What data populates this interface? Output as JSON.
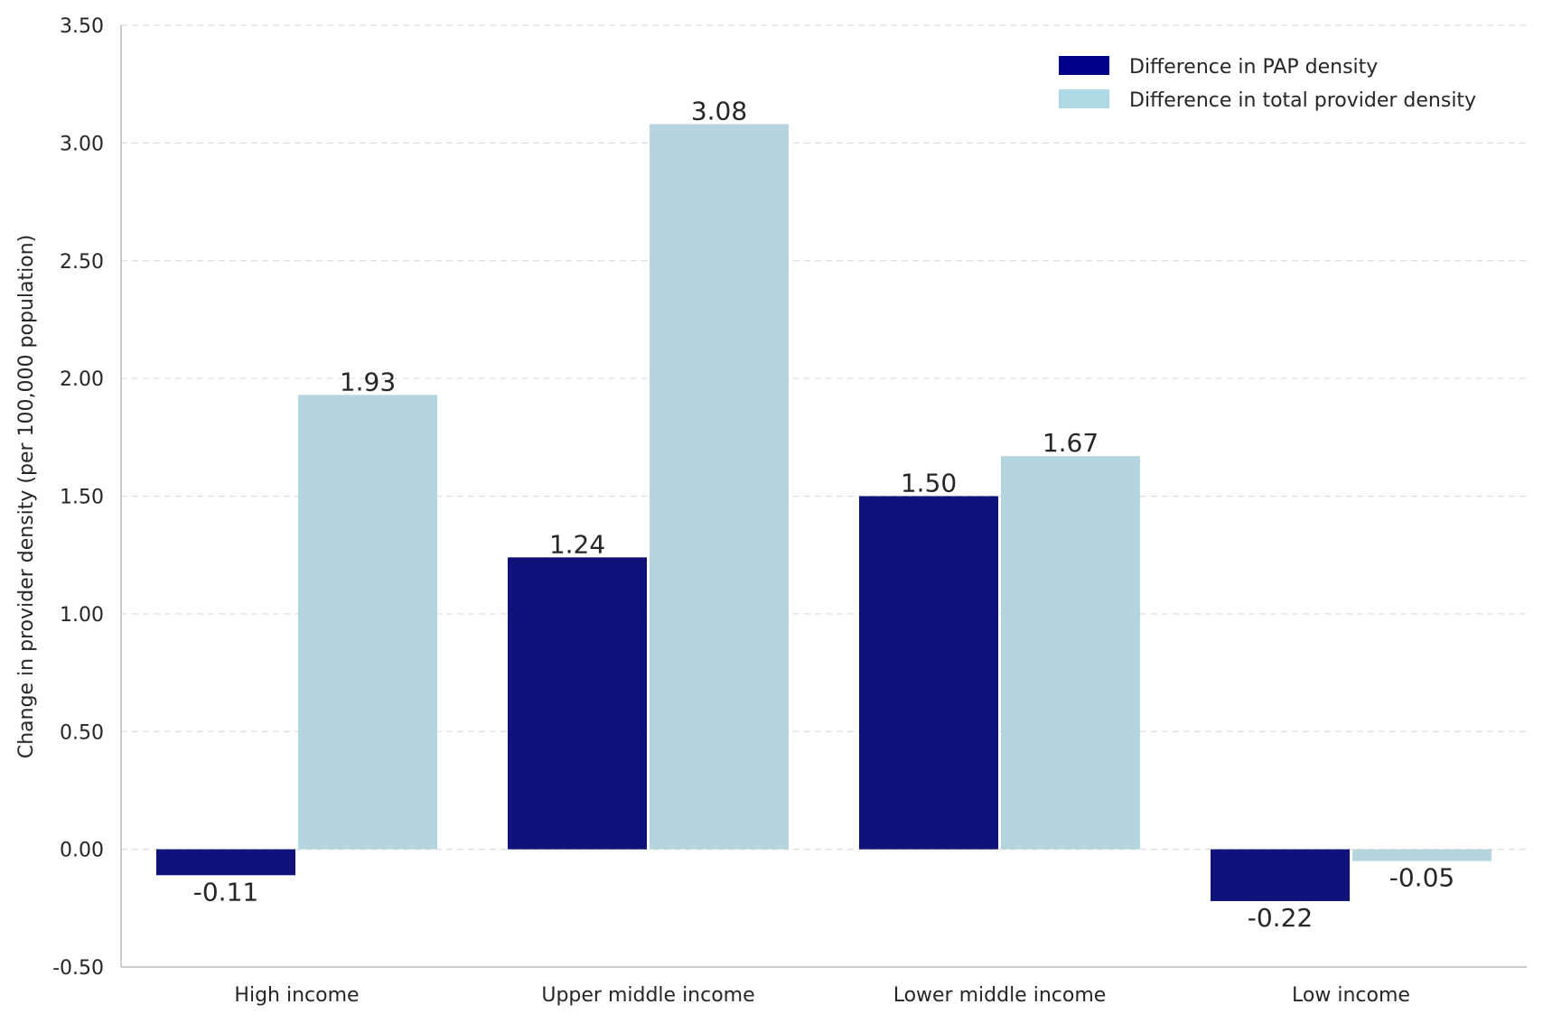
{
  "chart_data": {
    "type": "bar",
    "title": "",
    "xlabel": "",
    "ylabel": "Change in provider density (per 100,000 population)",
    "categories": [
      "High income",
      "Upper middle income",
      "Lower middle income",
      "Low income"
    ],
    "series": [
      {
        "name": "Difference in PAP density",
        "color": "#10127a",
        "legend_color": "#00008b",
        "values": [
          -0.11,
          1.24,
          1.5,
          -0.22
        ]
      },
      {
        "name": "Difference in total provider density",
        "color": "#b4d5e0",
        "legend_color": "#add8e6",
        "values": [
          1.93,
          3.08,
          1.67,
          -0.05
        ]
      }
    ],
    "data_labels": [
      [
        "-0.11",
        "1.24",
        "1.50",
        "-0.22"
      ],
      [
        "1.93",
        "3.08",
        "1.67",
        "-0.05"
      ]
    ],
    "ylim": [
      -0.5,
      3.5
    ],
    "yticks": [
      -0.5,
      0.0,
      0.5,
      1.0,
      1.5,
      2.0,
      2.5,
      3.0,
      3.5
    ],
    "ytick_labels": [
      "-0.50",
      "0.00",
      "0.50",
      "1.00",
      "1.50",
      "2.00",
      "2.50",
      "3.00",
      "3.50"
    ],
    "grid": true,
    "legend_position": "top-right"
  }
}
